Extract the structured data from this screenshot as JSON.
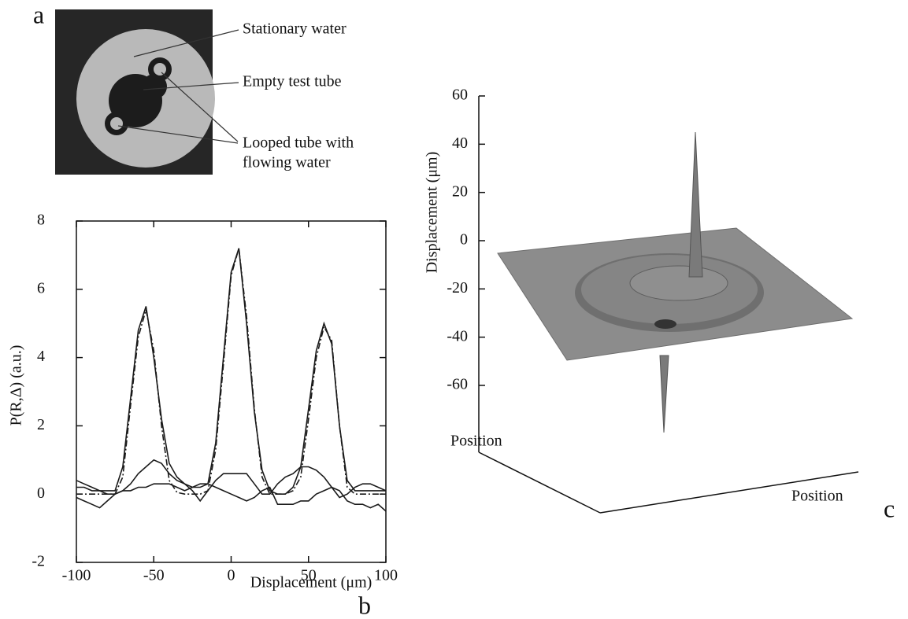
{
  "panel_a": {
    "label": "a",
    "annotations": [
      "Stationary water",
      "Empty test tube",
      "Looped tube with",
      "flowing water"
    ]
  },
  "chart_data": [
    {
      "type": "line",
      "label": "b",
      "x_label": "Displacement (μm)",
      "y_label": "P(R,Δ) (a.u.)",
      "xlim": [
        -100,
        100
      ],
      "ylim": [
        -2,
        8
      ],
      "xticks": [
        -100,
        -50,
        0,
        50,
        100
      ],
      "yticks": [
        -2,
        0,
        2,
        4,
        6,
        8
      ],
      "x": [
        -100,
        -95,
        -90,
        -85,
        -80,
        -75,
        -70,
        -65,
        -60,
        -55,
        -50,
        -45,
        -40,
        -35,
        -30,
        -25,
        -20,
        -15,
        -10,
        -5,
        0,
        5,
        10,
        15,
        20,
        25,
        30,
        35,
        40,
        45,
        50,
        55,
        60,
        65,
        70,
        75,
        80,
        85,
        90,
        95,
        100
      ],
      "series": [
        {
          "color": "#1a1a1a",
          "linestyle": "solid",
          "values": [
            0.2,
            0.2,
            0.1,
            0.1,
            0.1,
            0.1,
            0.8,
            2.8,
            4.8,
            5.5,
            4.0,
            2.2,
            0.9,
            0.5,
            0.3,
            0.2,
            0.2,
            0.3,
            1.5,
            4.0,
            6.5,
            7.2,
            5.0,
            2.4,
            0.7,
            0.1,
            0.0,
            0.0,
            0.2,
            0.8,
            2.5,
            4.2,
            5.0,
            4.4,
            2.0,
            0.4,
            0.1,
            0.1,
            0.1,
            0.1,
            0.1
          ]
        },
        {
          "color": "#1a1a1a",
          "linestyle": "dashdot",
          "values": [
            0,
            0,
            0,
            0,
            0,
            0,
            0.5,
            2.6,
            4.6,
            5.4,
            4.2,
            2.0,
            0.4,
            0.05,
            0,
            0,
            0,
            0.1,
            1.3,
            3.8,
            6.4,
            7.2,
            5.2,
            2.5,
            0.5,
            0,
            0,
            0,
            0.1,
            0.5,
            2.2,
            4.0,
            4.9,
            4.5,
            2.0,
            0.2,
            0,
            0,
            0,
            0,
            0
          ]
        },
        {
          "color": "#1a1a1a",
          "linestyle": "solid",
          "values": [
            0.4,
            0.3,
            0.2,
            0.1,
            0.0,
            0.0,
            0.1,
            0.3,
            0.6,
            0.8,
            1.0,
            0.9,
            0.6,
            0.4,
            0.3,
            0.1,
            -0.2,
            0.1,
            0.4,
            0.6,
            0.6,
            0.6,
            0.6,
            0.3,
            0.0,
            0.0,
            0.3,
            0.5,
            0.6,
            0.8,
            0.8,
            0.7,
            0.5,
            0.2,
            -0.1,
            0.0,
            0.2,
            0.3,
            0.3,
            0.2,
            0.1
          ]
        },
        {
          "color": "#1a1a1a",
          "linestyle": "solid",
          "values": [
            -0.1,
            -0.2,
            -0.3,
            -0.4,
            -0.2,
            0.0,
            0.1,
            0.1,
            0.2,
            0.2,
            0.3,
            0.3,
            0.3,
            0.2,
            0.1,
            0.2,
            0.3,
            0.3,
            0.2,
            0.1,
            0.0,
            -0.1,
            -0.2,
            -0.1,
            0.1,
            0.2,
            -0.3,
            -0.3,
            -0.3,
            -0.2,
            -0.2,
            0.0,
            0.1,
            0.2,
            0.1,
            -0.2,
            -0.3,
            -0.3,
            -0.4,
            -0.3,
            -0.5
          ]
        }
      ]
    },
    {
      "type": "surface3d",
      "label": "c",
      "z_label": "Displacement (μm)",
      "x_label": "Position",
      "depth_label": "Position",
      "zlim": [
        -60,
        60
      ],
      "zticks": [
        -60,
        -40,
        -20,
        0,
        20,
        40,
        60
      ],
      "color": "#8c8c8c",
      "values": [
        45,
        -58
      ]
    }
  ]
}
